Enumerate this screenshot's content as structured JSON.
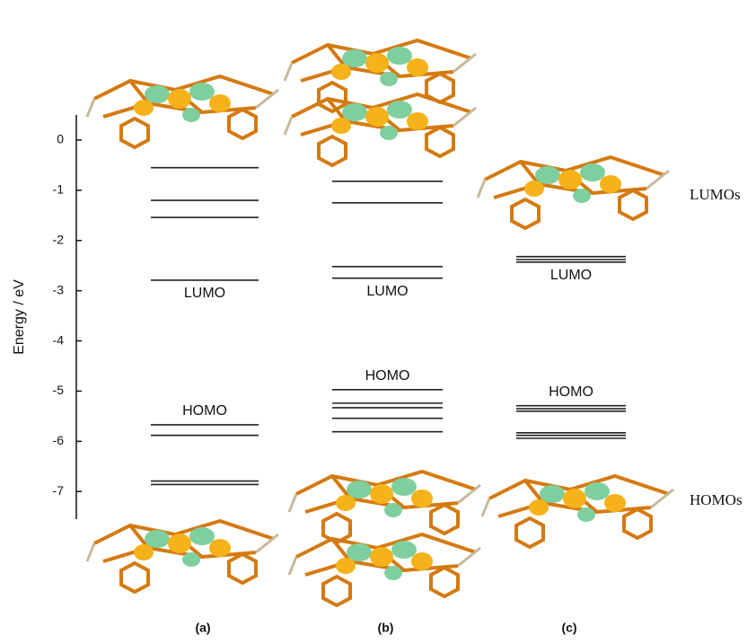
{
  "chart_data": {
    "type": "levels",
    "ylabel": "Energy / eV",
    "ylim": [
      -7.55,
      0.5
    ],
    "yticks": [
      0,
      -1,
      -2,
      -3,
      -4,
      -5,
      -6,
      -7
    ],
    "color": "#222222",
    "series": [
      {
        "name": "(a)",
        "values": [
          -0.55,
          -1.2,
          -1.54,
          -2.79,
          -5.67,
          -5.88,
          -6.79,
          -6.86
        ],
        "lumo_label": "LUMO",
        "homo_label": "HOMO"
      },
      {
        "name": "(b)",
        "values": [
          -0.82,
          -1.25,
          -2.52,
          -2.75,
          -4.97,
          -5.24,
          -5.33,
          -5.54,
          -5.81
        ],
        "lumo_label": "LUMO",
        "homo_label": "HOMO"
      },
      {
        "name": "(c)",
        "values": [
          -2.32,
          -2.38,
          -2.43,
          -5.29,
          -5.35,
          -5.4,
          -5.83,
          -5.88,
          -5.94
        ],
        "lumo_label": "LUMO",
        "homo_label": "HOMO"
      }
    ],
    "side_labels": [
      "LUMOs",
      "HOMOs"
    ]
  }
}
